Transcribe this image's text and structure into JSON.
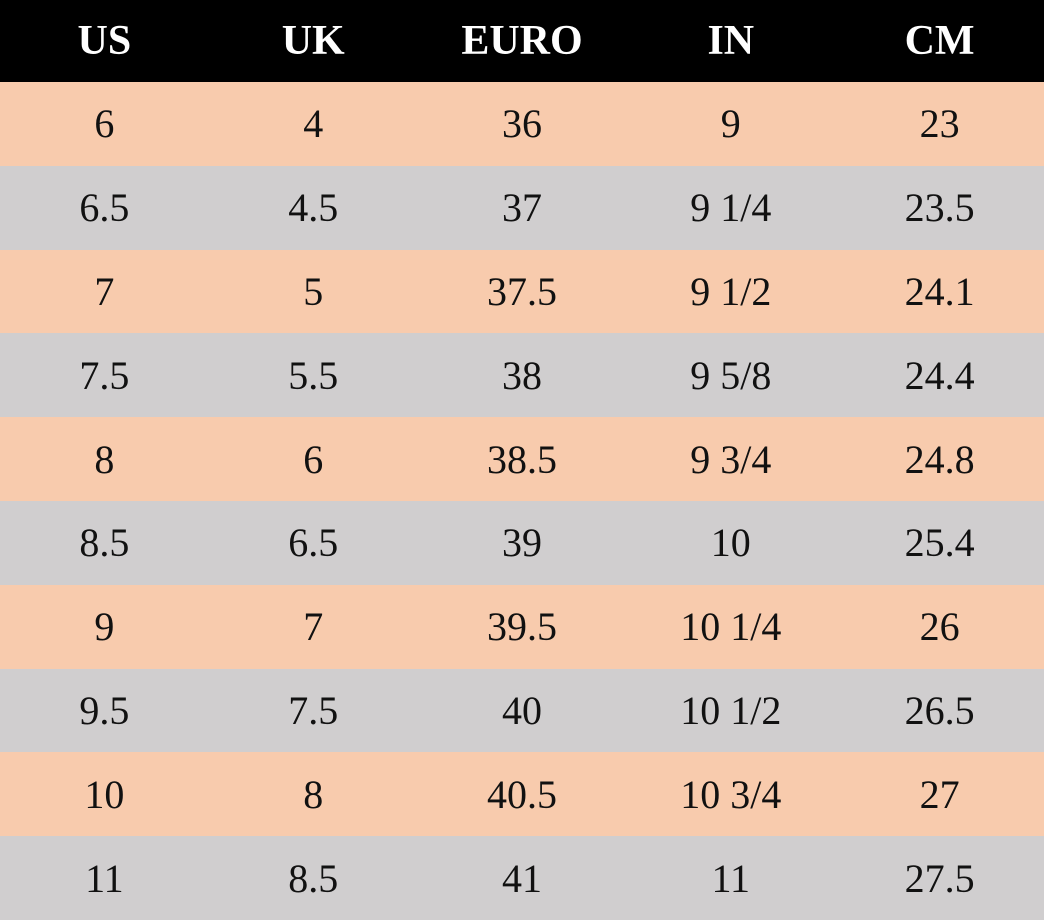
{
  "table": {
    "header": [
      "US",
      "UK",
      "EURO",
      "IN",
      "CM"
    ],
    "rows": [
      [
        "6",
        "4",
        "36",
        "9",
        "23"
      ],
      [
        "6.5",
        "4.5",
        "37",
        "9 1/4",
        "23.5"
      ],
      [
        "7",
        "5",
        "37.5",
        "9 1/2",
        "24.1"
      ],
      [
        "7.5",
        "5.5",
        "38",
        "9 5/8",
        "24.4"
      ],
      [
        "8",
        "6",
        "38.5",
        "9 3/4",
        "24.8"
      ],
      [
        "8.5",
        "6.5",
        "39",
        "10",
        "25.4"
      ],
      [
        "9",
        "7",
        "39.5",
        "10 1/4",
        "26"
      ],
      [
        "9.5",
        "7.5",
        "40",
        "10 1/2",
        "26.5"
      ],
      [
        "10",
        "8",
        "40.5",
        "10 3/4",
        "27"
      ],
      [
        "11",
        "8.5",
        "41",
        "11",
        "27.5"
      ]
    ]
  }
}
